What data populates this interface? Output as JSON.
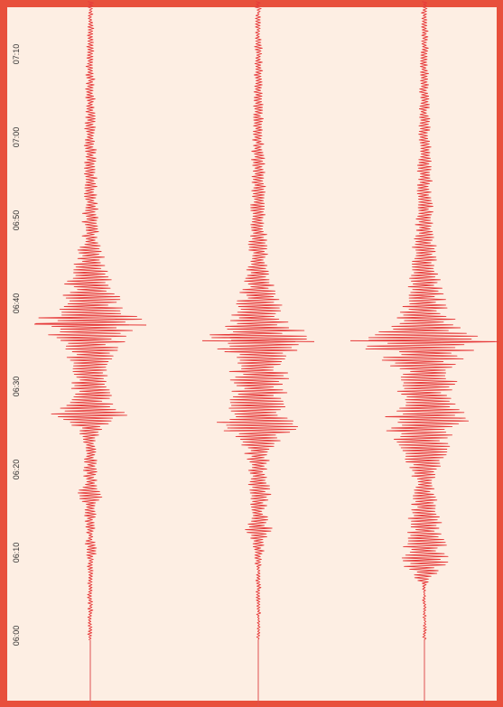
{
  "chart_data": {
    "type": "line",
    "title": "",
    "xlabel": "",
    "ylabel": "",
    "orientation": "vertical-time-axis",
    "y_axis": {
      "ticks": [
        "06:00",
        "06:10",
        "06:20",
        "06:30",
        "06:40",
        "06:50",
        "07:00",
        "07:10"
      ],
      "range_minutes": [
        -2,
        75
      ]
    },
    "series": [
      {
        "peak_time": 37.5,
        "peak_amplitude": 1.0,
        "envelope": [
          [
            -2,
            0.0
          ],
          [
            0,
            0.04
          ],
          [
            5,
            0.04
          ],
          [
            9,
            0.05
          ],
          [
            10,
            0.12
          ],
          [
            12,
            0.06
          ],
          [
            16,
            0.12
          ],
          [
            17,
            0.3
          ],
          [
            18,
            0.14
          ],
          [
            23,
            0.1
          ],
          [
            24,
            0.14
          ],
          [
            26,
            0.5
          ],
          [
            27,
            0.82
          ],
          [
            28,
            0.4
          ],
          [
            32,
            0.3
          ],
          [
            35,
            0.55
          ],
          [
            37,
            0.95
          ],
          [
            38,
            1.0
          ],
          [
            40,
            0.6
          ],
          [
            44,
            0.35
          ],
          [
            48,
            0.15
          ],
          [
            55,
            0.12
          ],
          [
            65,
            0.08
          ],
          [
            75,
            0.05
          ]
        ]
      },
      {
        "peak_time": 35.5,
        "peak_amplitude": 1.0,
        "envelope": [
          [
            -2,
            0.0
          ],
          [
            0,
            0.03
          ],
          [
            8,
            0.04
          ],
          [
            11,
            0.12
          ],
          [
            13,
            0.28
          ],
          [
            15,
            0.12
          ],
          [
            17,
            0.25
          ],
          [
            19,
            0.15
          ],
          [
            22,
            0.25
          ],
          [
            24,
            0.5
          ],
          [
            25,
            0.85
          ],
          [
            27,
            0.55
          ],
          [
            29,
            0.5
          ],
          [
            31,
            0.55
          ],
          [
            33,
            0.45
          ],
          [
            35,
            0.9
          ],
          [
            36,
            1.0
          ],
          [
            38,
            0.55
          ],
          [
            41,
            0.35
          ],
          [
            45,
            0.2
          ],
          [
            50,
            0.15
          ],
          [
            60,
            0.1
          ],
          [
            75,
            0.05
          ]
        ]
      },
      {
        "peak_time": 35.5,
        "peak_amplitude": 1.0,
        "envelope": [
          [
            -2,
            0.0
          ],
          [
            0,
            0.02
          ],
          [
            6,
            0.02
          ],
          [
            9,
            0.35
          ],
          [
            11,
            0.3
          ],
          [
            13,
            0.25
          ],
          [
            15,
            0.2
          ],
          [
            18,
            0.15
          ],
          [
            20,
            0.2
          ],
          [
            22,
            0.3
          ],
          [
            24,
            0.45
          ],
          [
            26,
            0.65
          ],
          [
            28,
            0.5
          ],
          [
            30,
            0.45
          ],
          [
            32,
            0.4
          ],
          [
            34,
            0.7
          ],
          [
            35.5,
            1.0
          ],
          [
            37,
            0.5
          ],
          [
            40,
            0.3
          ],
          [
            44,
            0.2
          ],
          [
            50,
            0.12
          ],
          [
            60,
            0.08
          ],
          [
            75,
            0.04
          ]
        ]
      }
    ]
  },
  "colors": {
    "frame": "#e8503c",
    "background": "#fdeee3",
    "trace": "#e63a3a",
    "baseline": "#e05050"
  }
}
